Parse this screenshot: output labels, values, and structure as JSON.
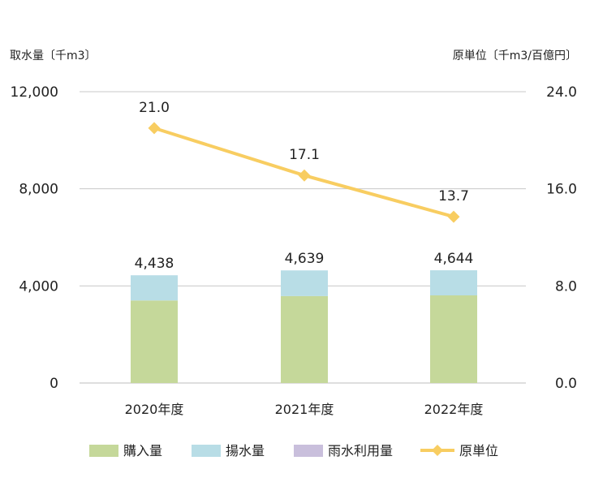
{
  "chart_data": {
    "type": "bar",
    "stacked": true,
    "categories": [
      "2020年度",
      "2021年度",
      "2022年度"
    ],
    "left_axis": {
      "title": "取水量〔千m3〕",
      "ticks": [
        "0",
        "4,000",
        "8,000",
        "12,000"
      ],
      "tick_values": [
        0,
        4000,
        8000,
        12000
      ],
      "ylim": [
        0,
        12000
      ]
    },
    "right_axis": {
      "title": "原単位〔千m3/百億円〕",
      "ticks": [
        "0.0",
        "8.0",
        "16.0",
        "24.0"
      ],
      "tick_values": [
        0,
        8,
        16,
        24
      ],
      "ylim": [
        0,
        24
      ]
    },
    "grid": true,
    "series": [
      {
        "name": "購入量",
        "kind": "bar",
        "axis": "left",
        "color": "#c5d89a",
        "values": [
          3400,
          3580,
          3610
        ]
      },
      {
        "name": "揚水量",
        "kind": "bar",
        "axis": "left",
        "color": "#b8dde6",
        "values": [
          1038,
          1059,
          1034
        ]
      },
      {
        "name": "雨水利用量",
        "kind": "bar",
        "axis": "left",
        "color": "#c9bfdc",
        "values": [
          0,
          0,
          0
        ]
      },
      {
        "name": "原単位",
        "kind": "line",
        "axis": "right",
        "color": "#f8cd61",
        "values": [
          21.0,
          17.1,
          13.7
        ]
      }
    ],
    "bar_totals": [
      "4,438",
      "4,639",
      "4,644"
    ],
    "line_labels": [
      "21.0",
      "17.1",
      "13.7"
    ],
    "legend_position": "bottom"
  }
}
